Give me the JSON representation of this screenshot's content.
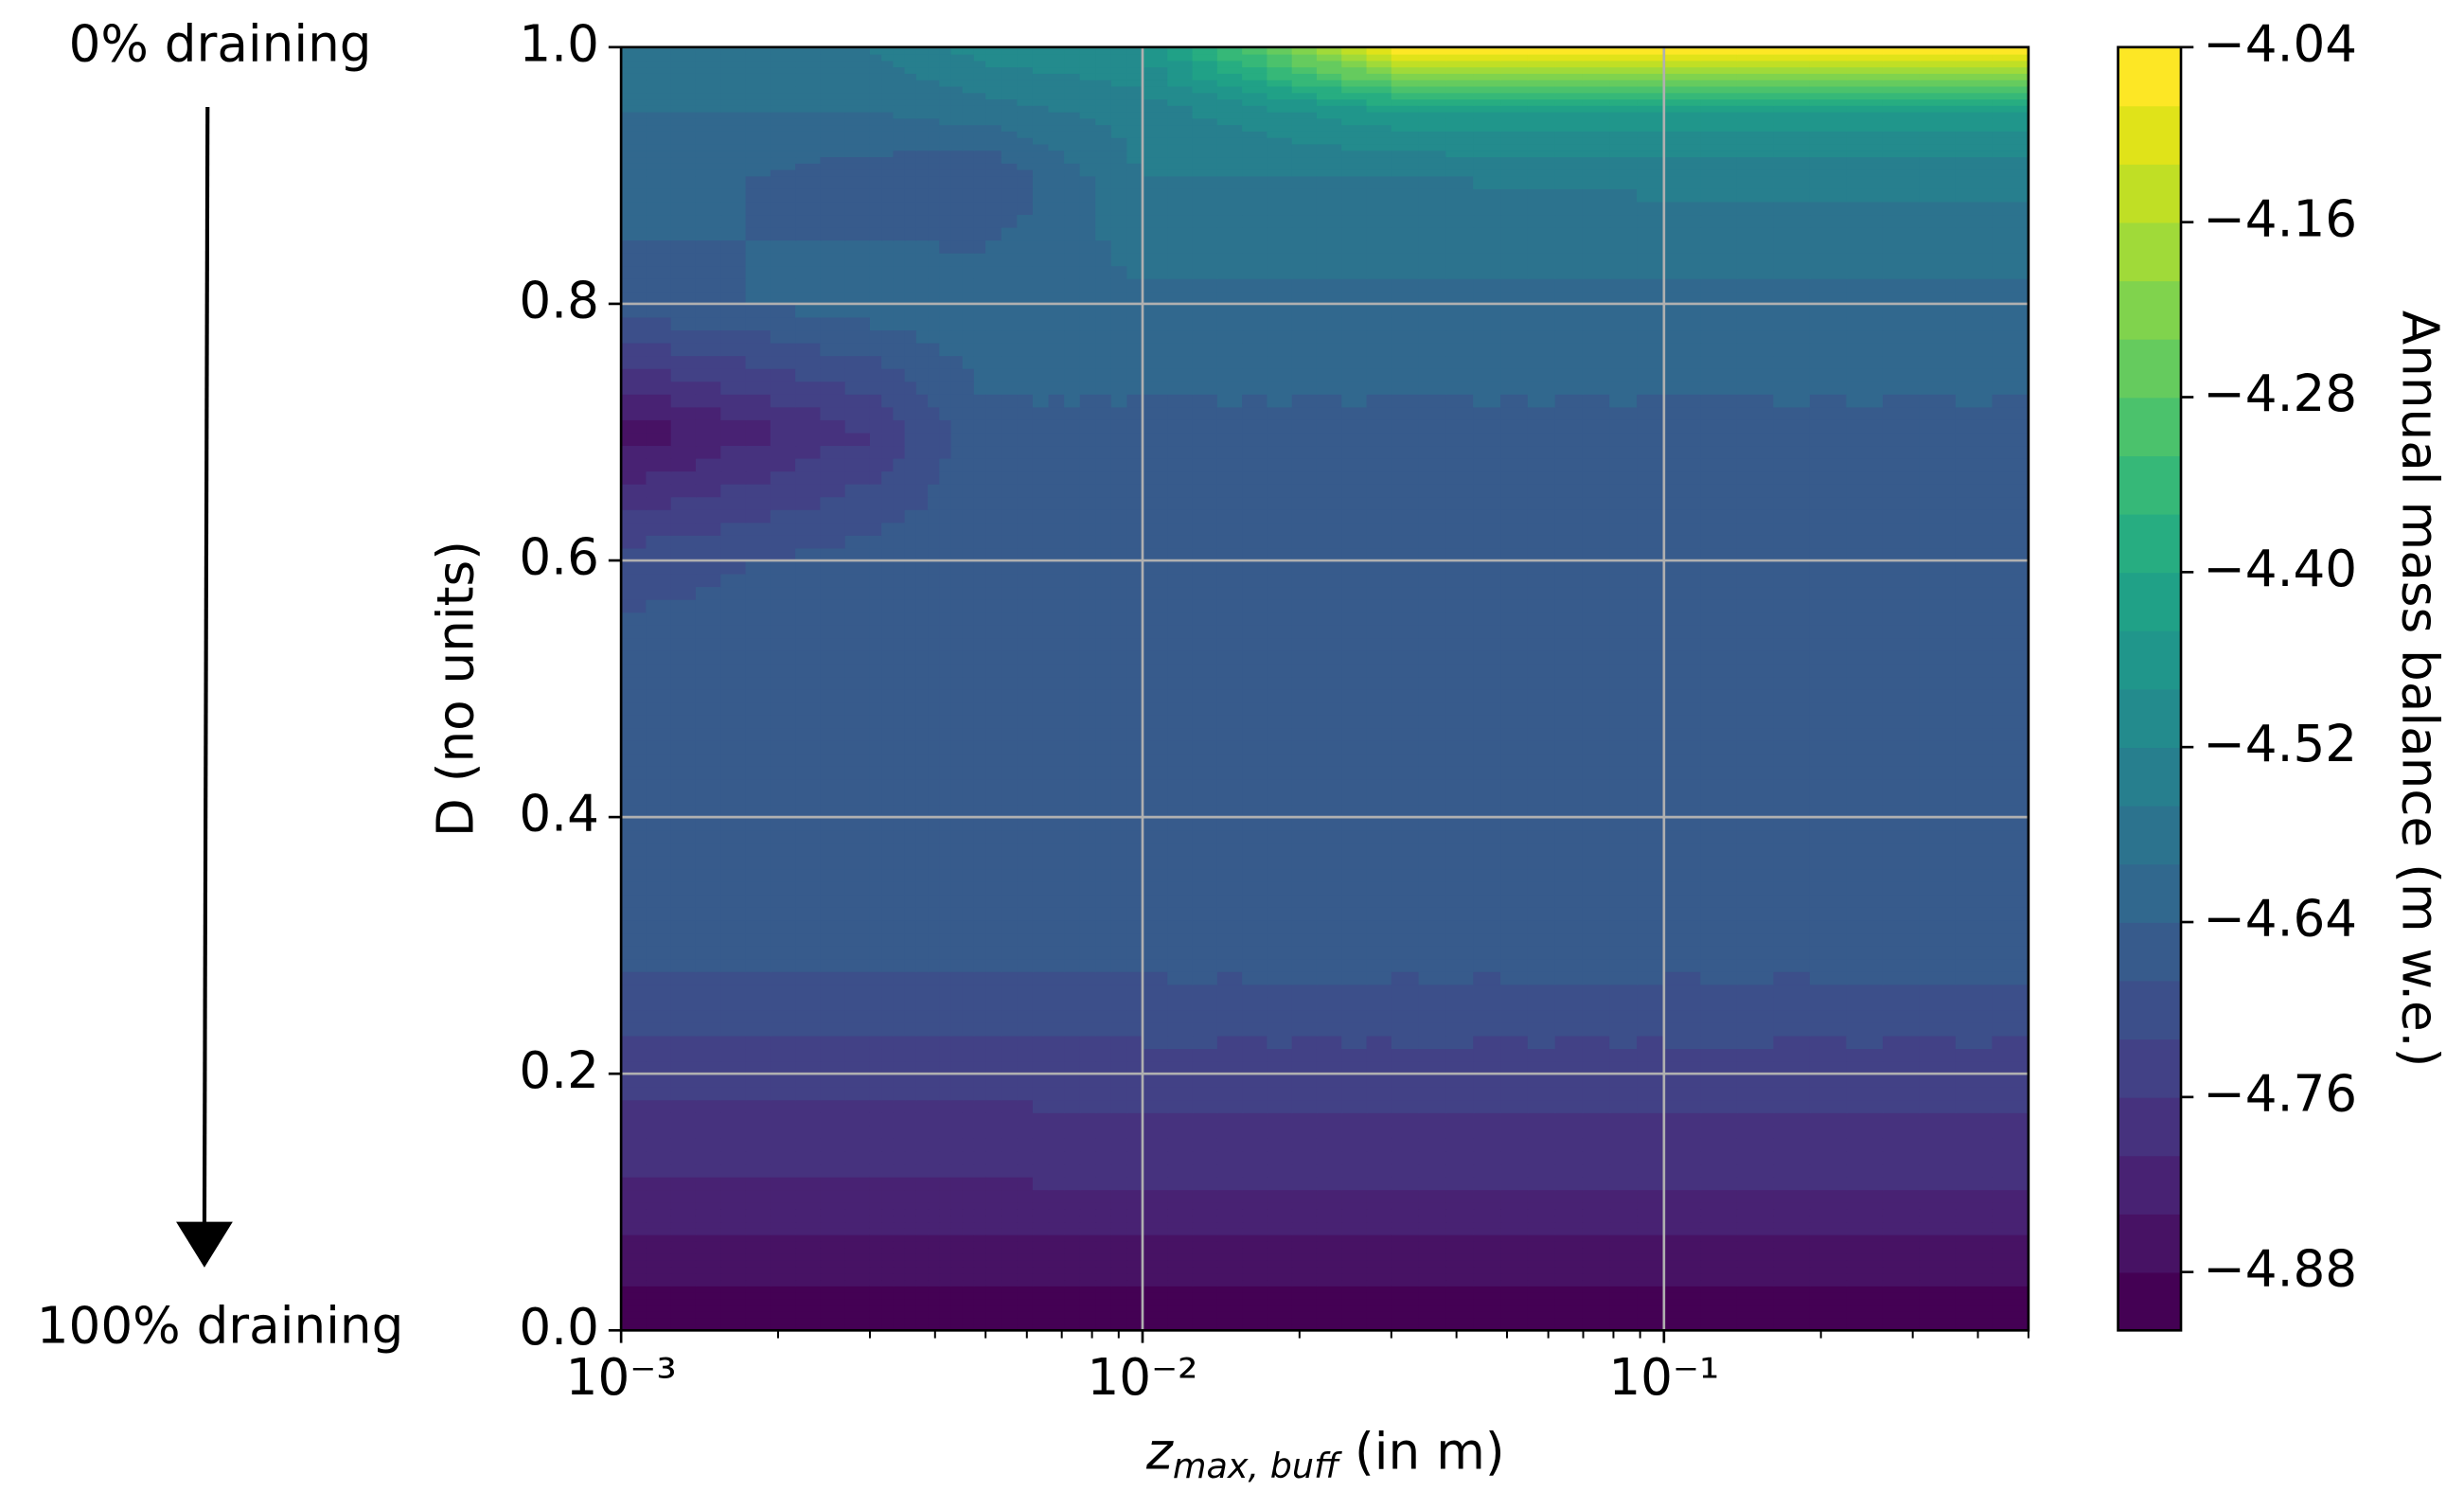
{
  "chart_data": {
    "type": "contour",
    "xlabel_symbol": "z",
    "xlabel_subscript": "max, buff",
    "xlabel_unit": "(in m)",
    "ylabel": "D (no units)",
    "colorbar_label": "Annual mass balance (m w.e.)",
    "annotations": [
      "0% draining",
      "100% draining"
    ],
    "xscale": "log",
    "xlim": [
      0.001,
      0.5
    ],
    "ylim": [
      0,
      1
    ],
    "xticks": [
      {
        "value": 0.001,
        "label": "10⁻³"
      },
      {
        "value": 0.01,
        "label": "10⁻²"
      },
      {
        "value": 0.1,
        "label": "10⁻¹"
      }
    ],
    "xminorticks": [
      0.002,
      0.003,
      0.004,
      0.005,
      0.006,
      0.007,
      0.008,
      0.009,
      0.02,
      0.03,
      0.04,
      0.05,
      0.06,
      0.07,
      0.08,
      0.09,
      0.2,
      0.3,
      0.4,
      0.5
    ],
    "yticks": [
      {
        "value": 0,
        "label": "0.0"
      },
      {
        "value": 0.2,
        "label": "0.2"
      },
      {
        "value": 0.4,
        "label": "0.4"
      },
      {
        "value": 0.6,
        "label": "0.6"
      },
      {
        "value": 0.8,
        "label": "0.8"
      },
      {
        "value": 1,
        "label": "1.0"
      }
    ],
    "grid": true,
    "x": [
      0.001,
      0.003,
      0.005,
      0.01,
      0.03,
      0.1,
      0.5
    ],
    "y": [
      0,
      0.05,
      0.1,
      0.2,
      0.3,
      0.4,
      0.5,
      0.6,
      0.7,
      0.8,
      0.9,
      0.95,
      1.0
    ],
    "z": [
      [
        -4.905,
        -4.905,
        -4.905,
        -4.905,
        -4.905,
        -4.905,
        -4.905
      ],
      [
        -4.87,
        -4.87,
        -4.87,
        -4.87,
        -4.87,
        -4.87,
        -4.87
      ],
      [
        -4.81,
        -4.81,
        -4.81,
        -4.81,
        -4.81,
        -4.81,
        -4.81
      ],
      [
        -4.745,
        -4.745,
        -4.745,
        -4.74,
        -4.74,
        -4.74,
        -4.74
      ],
      [
        -4.66,
        -4.66,
        -4.66,
        -4.66,
        -4.66,
        -4.66,
        -4.66
      ],
      [
        -4.65,
        -4.65,
        -4.65,
        -4.65,
        -4.65,
        -4.65,
        -4.65
      ],
      [
        -4.65,
        -4.65,
        -4.65,
        -4.65,
        -4.65,
        -4.65,
        -4.65
      ],
      [
        -4.7,
        -4.66,
        -4.65,
        -4.65,
        -4.65,
        -4.65,
        -4.65
      ],
      [
        -4.87,
        -4.76,
        -4.65,
        -4.65,
        -4.65,
        -4.65,
        -4.65
      ],
      [
        -4.66,
        -4.62,
        -4.61,
        -4.61,
        -4.61,
        -4.61,
        -4.61
      ],
      [
        -4.62,
        -4.66,
        -4.68,
        -4.56,
        -4.56,
        -4.55,
        -4.55
      ],
      [
        -4.6,
        -4.6,
        -4.58,
        -4.54,
        -4.45,
        -4.45,
        -4.45
      ],
      [
        -4.58,
        -4.56,
        -4.5,
        -4.48,
        -4.06,
        -4.04,
        -4.04
      ]
    ],
    "levels": [
      -4.92,
      -4.88,
      -4.84,
      -4.8,
      -4.76,
      -4.72,
      -4.68,
      -4.64,
      -4.6,
      -4.56,
      -4.52,
      -4.48,
      -4.44,
      -4.4,
      -4.36,
      -4.32,
      -4.28,
      -4.24,
      -4.2,
      -4.16,
      -4.12,
      -4.08,
      -4.04
    ],
    "colormap": [
      "#440154",
      "#471365",
      "#482475",
      "#463480",
      "#414487",
      "#3b528b",
      "#355f8d",
      "#2f6c8e",
      "#2a788e",
      "#25848e",
      "#21918c",
      "#1e9c89",
      "#22a884",
      "#2fb47c",
      "#44bf70",
      "#5ec962",
      "#7ad151",
      "#9bd93c",
      "#bddf26",
      "#dfe318",
      "#fde725"
    ],
    "colorbar_ticks": [
      {
        "value": -4.04,
        "label": "−4.04"
      },
      {
        "value": -4.16,
        "label": "−4.16"
      },
      {
        "value": -4.28,
        "label": "−4.28"
      },
      {
        "value": -4.4,
        "label": "−4.40"
      },
      {
        "value": -4.52,
        "label": "−4.52"
      },
      {
        "value": -4.64,
        "label": "−4.64"
      },
      {
        "value": -4.76,
        "label": "−4.76"
      },
      {
        "value": -4.88,
        "label": "−4.88"
      }
    ],
    "grid_color": "#b0b0b0"
  }
}
